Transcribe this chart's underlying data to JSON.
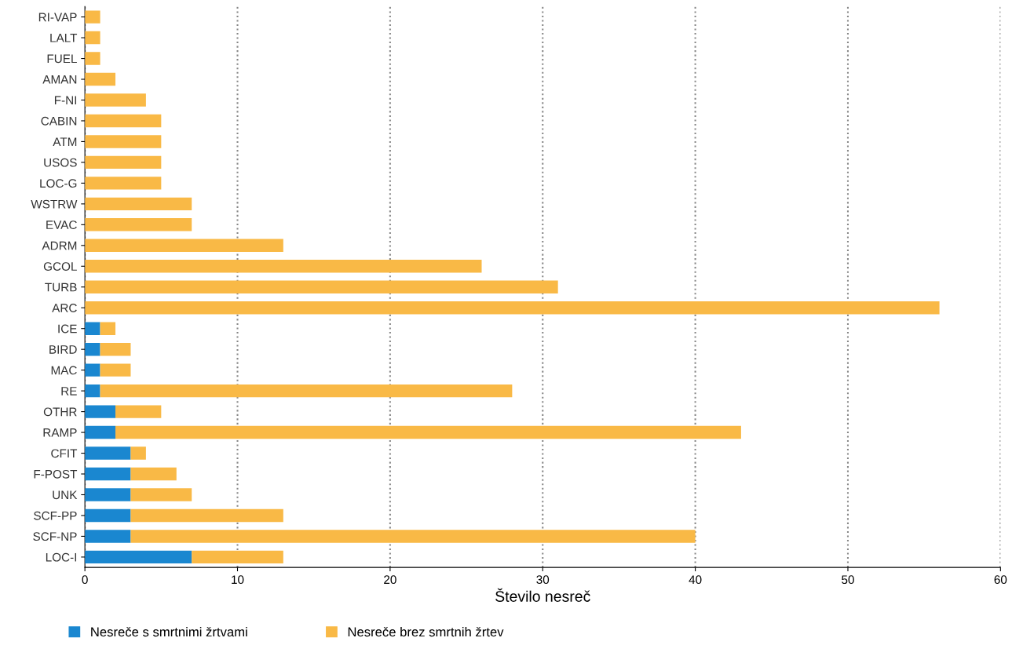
{
  "chart_data": {
    "type": "bar",
    "orientation": "horizontal",
    "stacked": true,
    "xlabel": "Število nesreč",
    "categories": [
      "RI-VAP",
      "LALT",
      "FUEL",
      "AMAN",
      "F-NI",
      "CABIN",
      "ATM",
      "USOS",
      "LOC-G",
      "WSTRW",
      "EVAC",
      "ADRM",
      "GCOL",
      "TURB",
      "ARC",
      "ICE",
      "BIRD",
      "MAC",
      "RE",
      "OTHR",
      "RAMP",
      "CFIT",
      "F-POST",
      "UNK",
      "SCF-PP",
      "SCF-NP",
      "LOC-I"
    ],
    "series": [
      {
        "name": "Nesreče s smrtnimi žrtvami",
        "color": "#1a87d0",
        "values": [
          0,
          0,
          0,
          0,
          0,
          0,
          0,
          0,
          0,
          0,
          0,
          0,
          0,
          0,
          0,
          1,
          1,
          1,
          1,
          2,
          2,
          3,
          3,
          3,
          3,
          3,
          7
        ]
      },
      {
        "name": "Nesreče brez smrtnih žrtev",
        "color": "#f9b946",
        "values": [
          1,
          1,
          1,
          2,
          4,
          5,
          5,
          5,
          5,
          7,
          7,
          13,
          26,
          31,
          56,
          1,
          2,
          2,
          27,
          3,
          41,
          1,
          3,
          4,
          10,
          37,
          6
        ]
      }
    ],
    "xlim": [
      0,
      60
    ],
    "xticks": [
      0,
      10,
      20,
      30,
      40,
      50,
      60
    ],
    "grid": "x",
    "legend": "bottom"
  }
}
